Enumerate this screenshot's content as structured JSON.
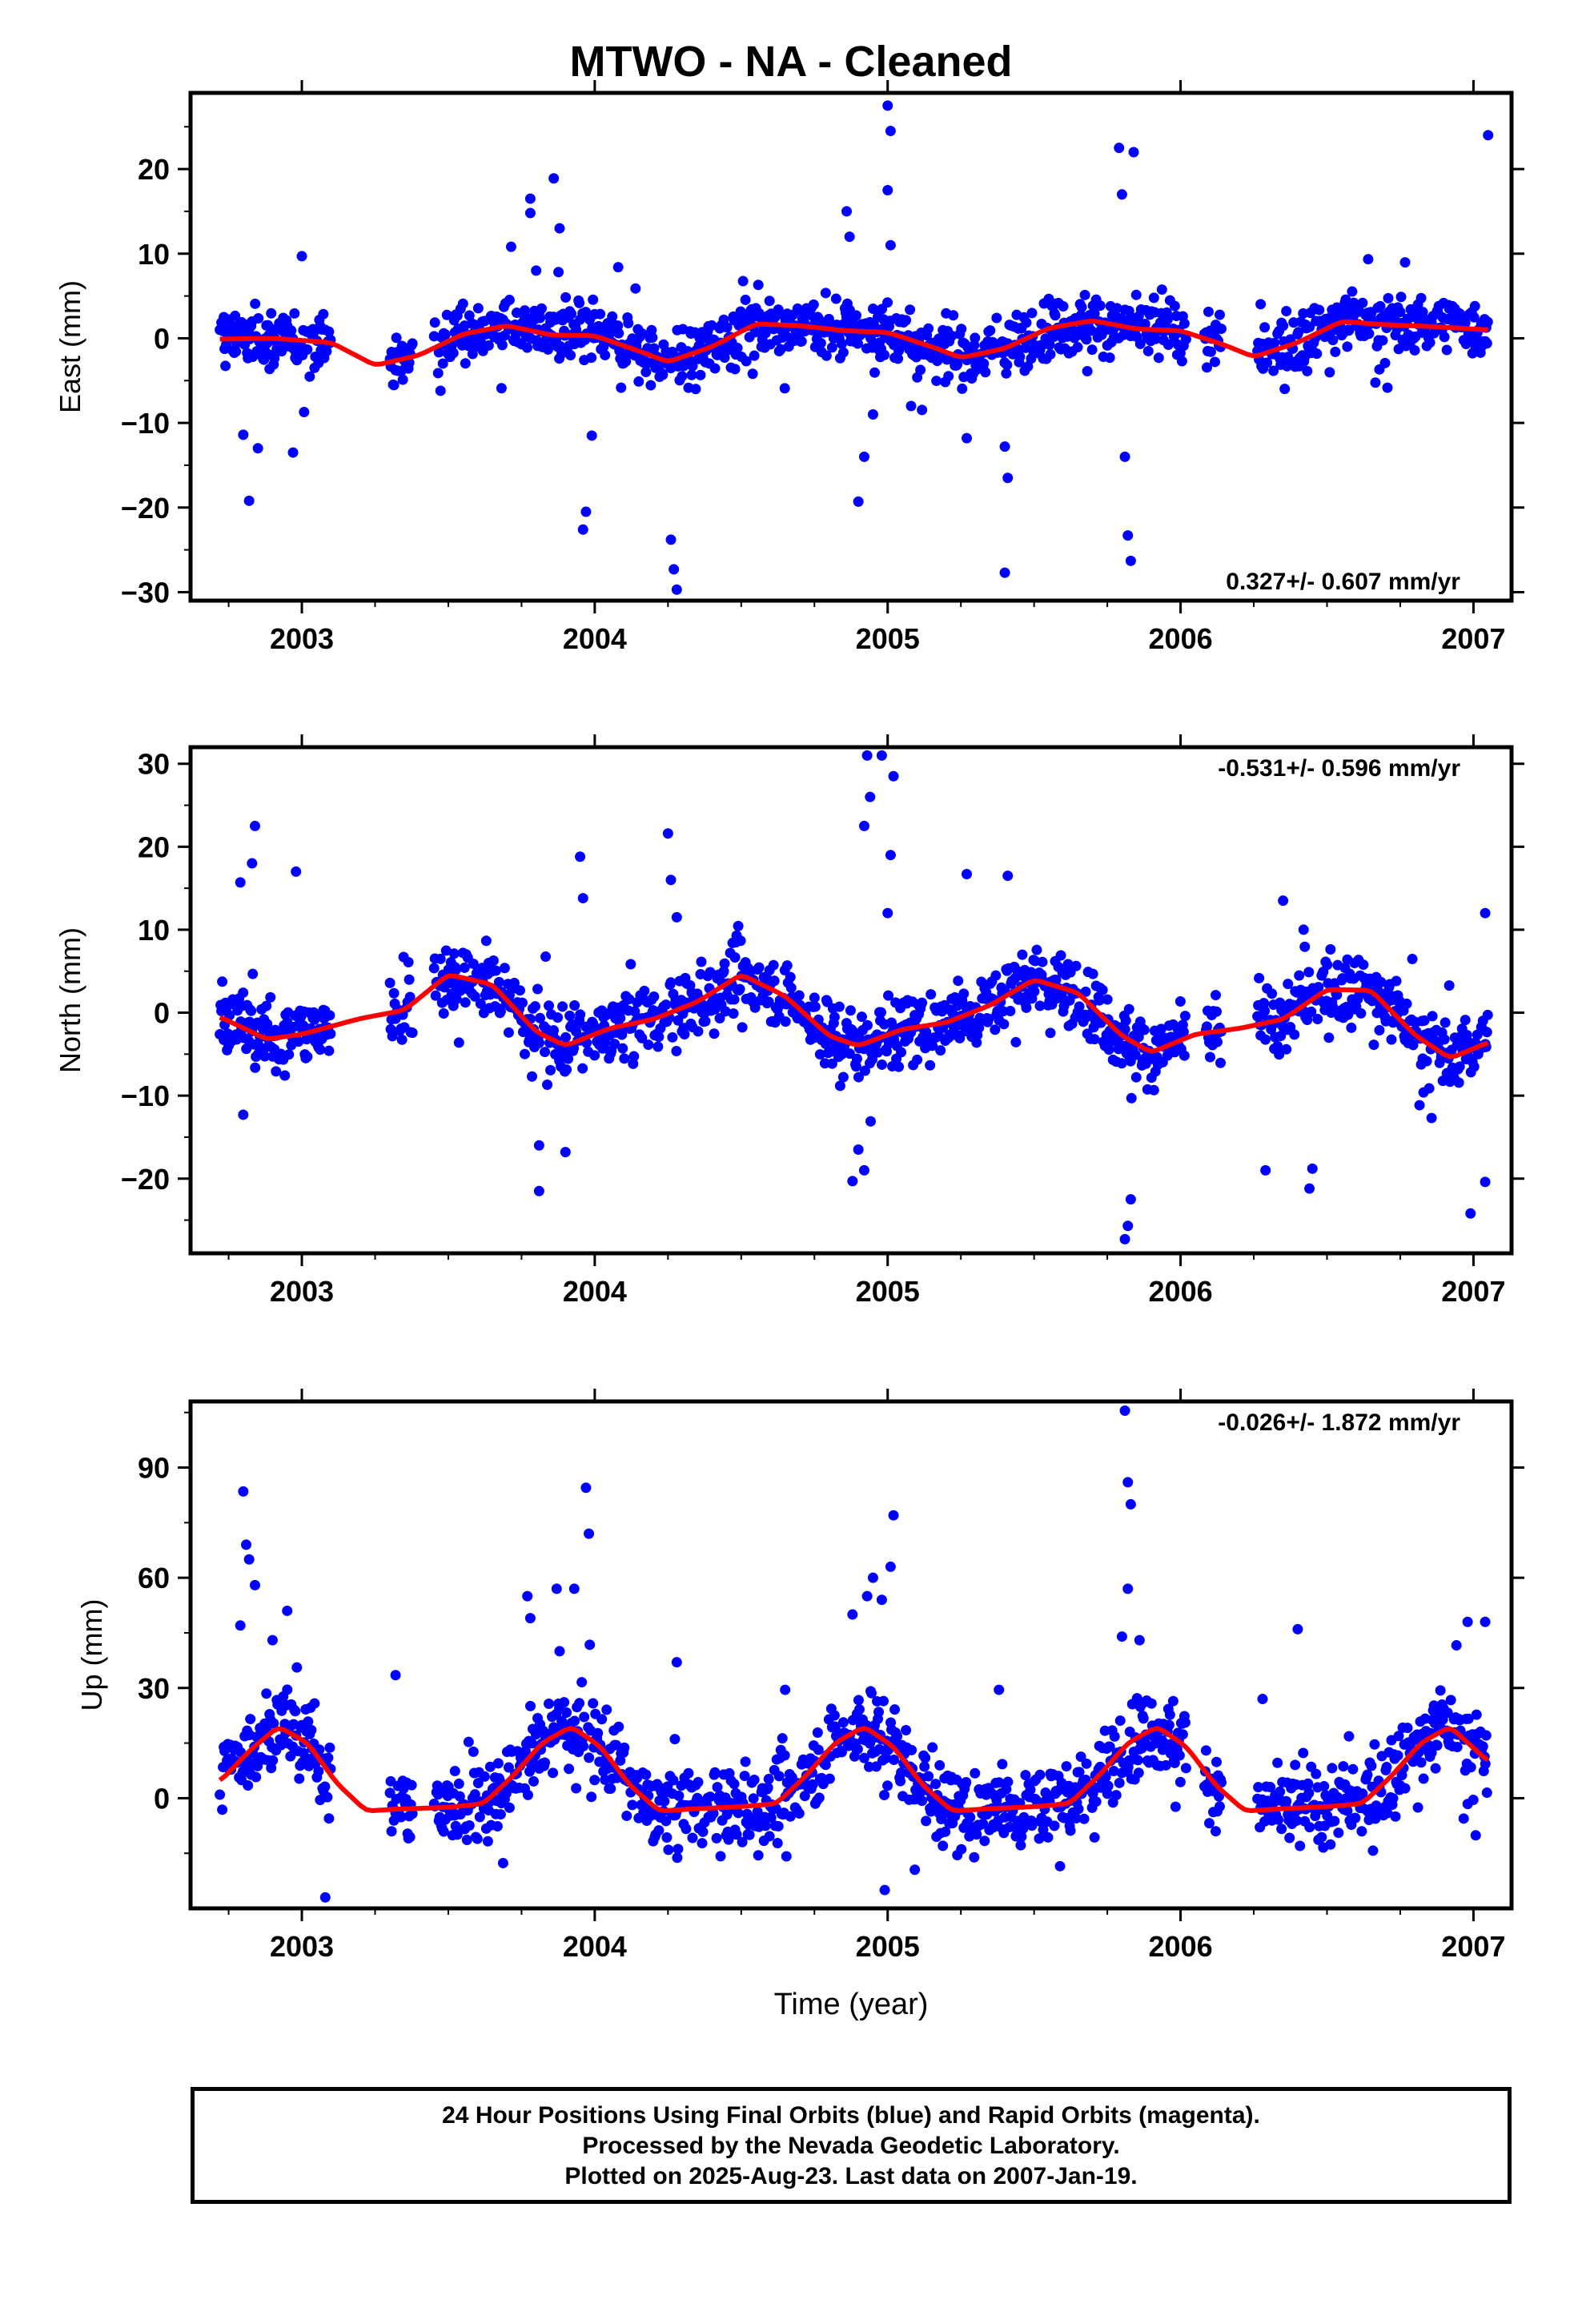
{
  "title": "MTWO  - NA - Cleaned",
  "footer": {
    "line1": "24 Hour Positions Using Final Orbits (blue) and Rapid Orbits (magenta).",
    "line2": "Processed by the Nevada Geodetic Laboratory.",
    "line3": "Plotted on 2025-Aug-23. Last data on 2007-Jan-19."
  },
  "colors": {
    "points": "#0000ff",
    "fit": "#ff0000",
    "axes": "#000000"
  },
  "chart_data": [
    {
      "type": "scatter",
      "ylabel": "East (mm)",
      "xlabel": "",
      "xlim": [
        2002.62,
        2007.13
      ],
      "ylim": [
        -31,
        29
      ],
      "xticks": [
        2003,
        2004,
        2005,
        2006,
        2007
      ],
      "yticks": [
        -30,
        -20,
        -10,
        0,
        10,
        20
      ],
      "rate_label": "0.327+/- 0.607 mm/yr",
      "rate_position": "bottom-right",
      "fit": {
        "x": [
          2002.72,
          2002.9,
          2003.1,
          2003.25,
          2003.4,
          2003.55,
          2003.7,
          2003.85,
          2004.0,
          2004.15,
          2004.25,
          2004.4,
          2004.55,
          2004.7,
          2004.85,
          2005.0,
          2005.15,
          2005.25,
          2005.4,
          2005.55,
          2005.7,
          2005.85,
          2006.0,
          2006.15,
          2006.25,
          2006.4,
          2006.55,
          2006.7,
          2006.85,
          2007.05
        ],
        "y": [
          -0.1,
          0.0,
          -0.5,
          -3.2,
          -2.0,
          0.5,
          1.5,
          0.4,
          0.3,
          -1.5,
          -2.8,
          -1.0,
          1.7,
          1.5,
          0.9,
          0.7,
          -1.0,
          -2.3,
          -1.2,
          1.2,
          2.1,
          1.1,
          0.9,
          -0.8,
          -2.2,
          -0.5,
          2.0,
          1.6,
          1.4,
          1.0
        ]
      },
      "outliers": [
        [
          2002.82,
          -19.2
        ],
        [
          2002.8,
          -11.4
        ],
        [
          2002.85,
          -13.0
        ],
        [
          2002.97,
          -13.5
        ],
        [
          2003.0,
          9.7
        ],
        [
          2003.78,
          16.5
        ],
        [
          2003.78,
          14.8
        ],
        [
          2003.8,
          8.0
        ],
        [
          2003.86,
          18.9
        ],
        [
          2003.88,
          13.0
        ],
        [
          2003.96,
          -22.6
        ],
        [
          2003.97,
          -20.5
        ],
        [
          2003.99,
          -11.5
        ],
        [
          2004.08,
          8.4
        ],
        [
          2004.26,
          -23.8
        ],
        [
          2004.27,
          -27.3
        ],
        [
          2004.28,
          -29.7
        ],
        [
          2004.86,
          15.0
        ],
        [
          2004.87,
          12.0
        ],
        [
          2004.9,
          -19.3
        ],
        [
          2004.92,
          -14.0
        ],
        [
          2004.95,
          -9.0
        ],
        [
          2005.0,
          27.5
        ],
        [
          2005.01,
          24.5
        ],
        [
          2005.0,
          17.5
        ],
        [
          2005.01,
          11.0
        ],
        [
          2005.08,
          -8.0
        ],
        [
          2005.27,
          -11.8
        ],
        [
          2005.4,
          -12.8
        ],
        [
          2005.41,
          -16.5
        ],
        [
          2005.4,
          -27.7
        ],
        [
          2005.79,
          22.5
        ],
        [
          2005.8,
          17.0
        ],
        [
          2005.84,
          22.0
        ],
        [
          2005.81,
          -14.0
        ],
        [
          2005.82,
          -23.3
        ],
        [
          2005.83,
          -26.3
        ],
        [
          2007.05,
          24.0
        ]
      ]
    },
    {
      "type": "scatter",
      "ylabel": "North (mm)",
      "xlabel": "",
      "xlim": [
        2002.62,
        2007.13
      ],
      "ylim": [
        -29,
        32
      ],
      "xticks": [
        2003,
        2004,
        2005,
        2006,
        2007
      ],
      "yticks": [
        -20,
        -10,
        0,
        10,
        20,
        30
      ],
      "rate_label": "-0.531+/- 0.596 mm/yr",
      "rate_position": "top-right",
      "fit": {
        "x": [
          2002.72,
          2002.88,
          2003.0,
          2003.2,
          2003.35,
          2003.5,
          2003.65,
          2003.8,
          2003.9,
          2004.05,
          2004.2,
          2004.35,
          2004.5,
          2004.65,
          2004.8,
          2004.9,
          2005.05,
          2005.2,
          2005.35,
          2005.5,
          2005.65,
          2005.8,
          2005.9,
          2006.05,
          2006.2,
          2006.35,
          2006.5,
          2006.65,
          2006.8,
          2006.92,
          2007.05
        ],
        "y": [
          -0.5,
          -3.2,
          -2.6,
          -0.7,
          0.3,
          4.6,
          3.4,
          -2.3,
          -4.0,
          -1.9,
          -0.8,
          1.3,
          4.6,
          2.0,
          -2.8,
          -4.0,
          -2.0,
          -1.2,
          0.9,
          4.0,
          2.4,
          -2.8,
          -4.8,
          -2.6,
          -1.9,
          -0.8,
          2.8,
          2.7,
          -2.7,
          -5.5,
          -3.6
        ]
      },
      "outliers": [
        [
          2002.84,
          22.5
        ],
        [
          2002.83,
          18.0
        ],
        [
          2002.79,
          15.7
        ],
        [
          2002.98,
          17.0
        ],
        [
          2002.8,
          -12.3
        ],
        [
          2003.81,
          -16.0
        ],
        [
          2003.81,
          -21.5
        ],
        [
          2003.95,
          18.8
        ],
        [
          2003.96,
          13.8
        ],
        [
          2003.9,
          -16.8
        ],
        [
          2004.25,
          21.6
        ],
        [
          2004.26,
          16.0
        ],
        [
          2004.28,
          11.5
        ],
        [
          2004.88,
          -20.3
        ],
        [
          2004.9,
          -16.5
        ],
        [
          2004.92,
          -19.0
        ],
        [
          2004.93,
          31.0
        ],
        [
          2004.94,
          26.0
        ],
        [
          2004.92,
          22.5
        ],
        [
          2004.98,
          31.0
        ],
        [
          2005.02,
          28.5
        ],
        [
          2005.01,
          19.0
        ],
        [
          2005.0,
          12.0
        ],
        [
          2005.27,
          16.7
        ],
        [
          2005.41,
          16.5
        ],
        [
          2005.81,
          -27.3
        ],
        [
          2005.82,
          -25.7
        ],
        [
          2005.83,
          -22.5
        ],
        [
          2006.35,
          13.5
        ],
        [
          2006.42,
          10.0
        ],
        [
          2006.44,
          -21.2
        ],
        [
          2006.45,
          -18.8
        ],
        [
          2006.29,
          -19.0
        ],
        [
          2006.99,
          -24.2
        ],
        [
          2007.04,
          12.0
        ],
        [
          2007.04,
          -20.4
        ]
      ]
    },
    {
      "type": "scatter",
      "ylabel": "Up (mm)",
      "xlabel": "Time (year)",
      "xlim": [
        2002.62,
        2007.13
      ],
      "ylim": [
        -30,
        108
      ],
      "xticks": [
        2003,
        2004,
        2005,
        2006,
        2007
      ],
      "yticks": [
        0,
        30,
        60,
        90
      ],
      "rate_label": "-0.026+/- 1.872 mm/yr",
      "rate_position": "top-right",
      "fit": {
        "x": [
          2002.72,
          2002.82,
          2002.92,
          2003.02,
          2003.12,
          2003.22,
          2003.32,
          2003.5,
          2003.62,
          2003.72,
          2003.82,
          2003.92,
          2004.02,
          2004.12,
          2004.22,
          2004.32,
          2004.5,
          2004.62,
          2004.72,
          2004.82,
          2004.92,
          2005.02,
          2005.12,
          2005.22,
          2005.32,
          2005.5,
          2005.62,
          2005.72,
          2005.82,
          2005.92,
          2006.02,
          2006.12,
          2006.22,
          2006.32,
          2006.5,
          2006.62,
          2006.72,
          2006.82,
          2006.92,
          2007.05
        ],
        "y": [
          4.5,
          12.8,
          19.5,
          15.0,
          4.0,
          -3.5,
          -3.0,
          -2.5,
          -1.5,
          6.0,
          15.0,
          19.5,
          14.0,
          3.5,
          -3.5,
          -3.0,
          -2.3,
          -1.5,
          6.0,
          15.0,
          19.5,
          14.0,
          3.5,
          -3.5,
          -3.0,
          -2.3,
          -1.5,
          6.0,
          15.0,
          19.5,
          14.0,
          3.5,
          -3.5,
          -3.0,
          -2.3,
          -1.5,
          6.0,
          15.0,
          19.5,
          10.0
        ]
      },
      "outliers": [
        [
          2002.8,
          83.5
        ],
        [
          2002.81,
          69.0
        ],
        [
          2002.82,
          65.0
        ],
        [
          2002.84,
          58.0
        ],
        [
          2002.79,
          47.0
        ],
        [
          2002.9,
          43.0
        ],
        [
          2002.95,
          51.0
        ],
        [
          2003.08,
          -27.0
        ],
        [
          2003.32,
          33.5
        ],
        [
          2003.77,
          55.0
        ],
        [
          2003.78,
          49.0
        ],
        [
          2003.87,
          57.0
        ],
        [
          2003.88,
          40.0
        ],
        [
          2003.93,
          57.0
        ],
        [
          2003.97,
          84.5
        ],
        [
          2003.98,
          72.0
        ],
        [
          2004.28,
          37.0
        ],
        [
          2004.65,
          29.5
        ],
        [
          2004.88,
          50.0
        ],
        [
          2004.93,
          55.0
        ],
        [
          2004.95,
          60.0
        ],
        [
          2004.98,
          54.0
        ],
        [
          2005.02,
          77.0
        ],
        [
          2005.01,
          63.0
        ],
        [
          2004.99,
          -25.0
        ],
        [
          2005.38,
          29.5
        ],
        [
          2005.81,
          105.5
        ],
        [
          2005.82,
          86.0
        ],
        [
          2005.83,
          80.0
        ],
        [
          2005.82,
          57.0
        ],
        [
          2005.8,
          44.0
        ],
        [
          2005.86,
          43.0
        ],
        [
          2006.4,
          46.0
        ],
        [
          2006.28,
          27.0
        ],
        [
          2006.98,
          48.0
        ],
        [
          2007.04,
          48.0
        ]
      ]
    }
  ]
}
